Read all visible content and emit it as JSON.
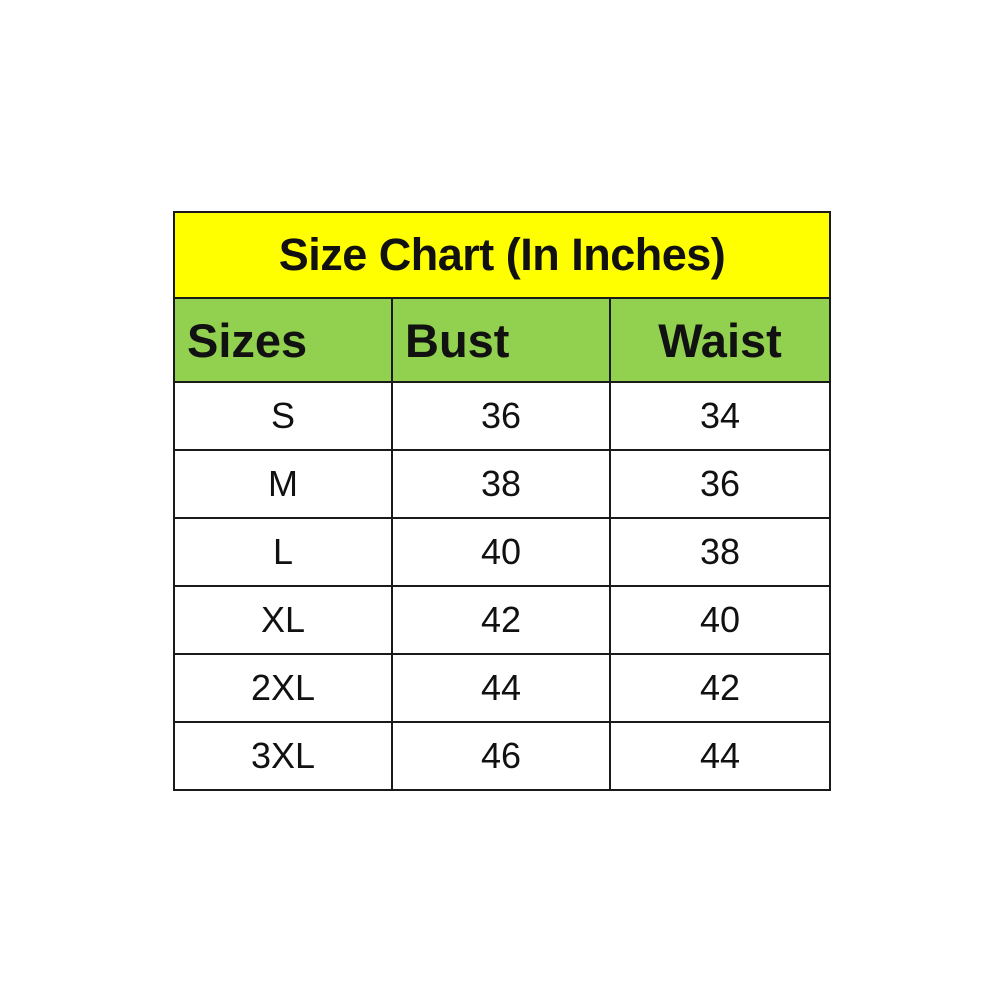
{
  "title": "Size Chart (In Inches)",
  "colors": {
    "title_bg": "#ffff00",
    "header_bg": "#92d050",
    "border": "#1a1a1a"
  },
  "columns": [
    "Sizes",
    "Bust",
    "Waist"
  ],
  "rows": [
    [
      "S",
      "36",
      "34"
    ],
    [
      "M",
      "38",
      "36"
    ],
    [
      "L",
      "40",
      "38"
    ],
    [
      "XL",
      "42",
      "40"
    ],
    [
      "2XL",
      "44",
      "42"
    ],
    [
      "3XL",
      "46",
      "44"
    ]
  ]
}
